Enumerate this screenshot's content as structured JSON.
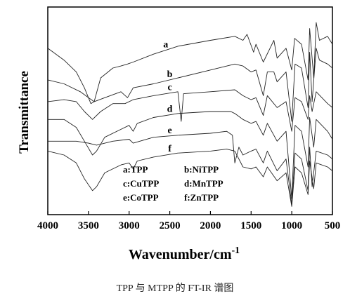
{
  "chart_data": {
    "type": "line",
    "xlabel": "Wavenumber/cm",
    "xlabel_superscript": "-1",
    "ylabel": "Transmittance",
    "xlim": [
      4000,
      500
    ],
    "x_ticks": [
      "4000",
      "3500",
      "3000",
      "2500",
      "2000",
      "1500",
      "1000",
      "500"
    ],
    "y_ticks": "none",
    "legend": [
      "a:TPP",
      "b:NiTPP",
      "c:CuTPP",
      "d:MnTPP",
      "e:CoTPP",
      "f:ZnTPP"
    ],
    "legend_placement": "bottom-center",
    "series": [
      {
        "name": "a",
        "label_at": 2550,
        "points": [
          [
            4000,
            0.82
          ],
          [
            3800,
            0.76
          ],
          [
            3650,
            0.7
          ],
          [
            3550,
            0.62
          ],
          [
            3470,
            0.54
          ],
          [
            3430,
            0.55
          ],
          [
            3350,
            0.67
          ],
          [
            3200,
            0.72
          ],
          [
            3100,
            0.73
          ],
          [
            3020,
            0.74
          ],
          [
            2950,
            0.75
          ],
          [
            2700,
            0.79
          ],
          [
            2400,
            0.83
          ],
          [
            2000,
            0.86
          ],
          [
            1700,
            0.88
          ],
          [
            1600,
            0.86
          ],
          [
            1550,
            0.89
          ],
          [
            1470,
            0.8
          ],
          [
            1440,
            0.84
          ],
          [
            1350,
            0.75
          ],
          [
            1220,
            0.86
          ],
          [
            1180,
            0.77
          ],
          [
            1070,
            0.82
          ],
          [
            1000,
            0.71
          ],
          [
            965,
            0.87
          ],
          [
            880,
            0.84
          ],
          [
            800,
            0.66
          ],
          [
            780,
            0.92
          ],
          [
            730,
            0.67
          ],
          [
            700,
            0.95
          ],
          [
            660,
            0.86
          ],
          [
            560,
            0.88
          ],
          [
            500,
            0.84
          ]
        ]
      },
      {
        "name": "b",
        "label_at": 2500,
        "points": [
          [
            4000,
            0.66
          ],
          [
            3800,
            0.64
          ],
          [
            3600,
            0.6
          ],
          [
            3500,
            0.57
          ],
          [
            3430,
            0.55
          ],
          [
            3300,
            0.57
          ],
          [
            3100,
            0.6
          ],
          [
            3020,
            0.57
          ],
          [
            2950,
            0.62
          ],
          [
            2700,
            0.64
          ],
          [
            2400,
            0.67
          ],
          [
            2000,
            0.71
          ],
          [
            1700,
            0.74
          ],
          [
            1600,
            0.73
          ],
          [
            1500,
            0.7
          ],
          [
            1440,
            0.71
          ],
          [
            1350,
            0.58
          ],
          [
            1300,
            0.7
          ],
          [
            1220,
            0.7
          ],
          [
            1180,
            0.65
          ],
          [
            1070,
            0.7
          ],
          [
            1000,
            0.45
          ],
          [
            960,
            0.74
          ],
          [
            880,
            0.72
          ],
          [
            800,
            0.52
          ],
          [
            780,
            0.8
          ],
          [
            750,
            0.55
          ],
          [
            700,
            0.82
          ],
          [
            660,
            0.76
          ],
          [
            560,
            0.74
          ],
          [
            500,
            0.72
          ]
        ]
      },
      {
        "name": "c",
        "label_at": 2500,
        "points": [
          [
            4000,
            0.55
          ],
          [
            3800,
            0.56
          ],
          [
            3650,
            0.55
          ],
          [
            3550,
            0.5
          ],
          [
            3450,
            0.46
          ],
          [
            3350,
            0.5
          ],
          [
            3200,
            0.54
          ],
          [
            3050,
            0.54
          ],
          [
            2950,
            0.56
          ],
          [
            2700,
            0.58
          ],
          [
            2400,
            0.6
          ],
          [
            2360,
            0.45
          ],
          [
            2330,
            0.59
          ],
          [
            2000,
            0.6
          ],
          [
            1700,
            0.61
          ],
          [
            1600,
            0.58
          ],
          [
            1500,
            0.56
          ],
          [
            1440,
            0.57
          ],
          [
            1350,
            0.48
          ],
          [
            1300,
            0.58
          ],
          [
            1180,
            0.52
          ],
          [
            1070,
            0.55
          ],
          [
            1000,
            0.4
          ],
          [
            960,
            0.57
          ],
          [
            880,
            0.55
          ],
          [
            800,
            0.46
          ],
          [
            780,
            0.58
          ],
          [
            750,
            0.5
          ],
          [
            700,
            0.6
          ],
          [
            560,
            0.54
          ],
          [
            500,
            0.52
          ]
        ]
      },
      {
        "name": "d",
        "label_at": 2500,
        "points": [
          [
            4000,
            0.46
          ],
          [
            3800,
            0.46
          ],
          [
            3650,
            0.42
          ],
          [
            3550,
            0.35
          ],
          [
            3450,
            0.28
          ],
          [
            3400,
            0.3
          ],
          [
            3300,
            0.37
          ],
          [
            3100,
            0.41
          ],
          [
            3000,
            0.43
          ],
          [
            2950,
            0.4
          ],
          [
            2900,
            0.44
          ],
          [
            2700,
            0.47
          ],
          [
            2400,
            0.49
          ],
          [
            2000,
            0.5
          ],
          [
            1750,
            0.5
          ],
          [
            1700,
            0.49
          ],
          [
            1600,
            0.46
          ],
          [
            1500,
            0.44
          ],
          [
            1440,
            0.45
          ],
          [
            1350,
            0.38
          ],
          [
            1300,
            0.44
          ],
          [
            1180,
            0.35
          ],
          [
            1070,
            0.4
          ],
          [
            1000,
            0.06
          ],
          [
            960,
            0.43
          ],
          [
            880,
            0.4
          ],
          [
            800,
            0.22
          ],
          [
            780,
            0.47
          ],
          [
            730,
            0.32
          ],
          [
            700,
            0.46
          ],
          [
            560,
            0.4
          ],
          [
            500,
            0.36
          ]
        ]
      },
      {
        "name": "e",
        "label_at": 2500,
        "points": [
          [
            4000,
            0.35
          ],
          [
            3800,
            0.35
          ],
          [
            3650,
            0.35
          ],
          [
            3500,
            0.34
          ],
          [
            3400,
            0.33
          ],
          [
            3200,
            0.35
          ],
          [
            3000,
            0.36
          ],
          [
            2950,
            0.34
          ],
          [
            2700,
            0.37
          ],
          [
            2400,
            0.38
          ],
          [
            2000,
            0.39
          ],
          [
            1800,
            0.4
          ],
          [
            1730,
            0.38
          ],
          [
            1700,
            0.24
          ],
          [
            1650,
            0.32
          ],
          [
            1600,
            0.28
          ],
          [
            1500,
            0.3
          ],
          [
            1440,
            0.31
          ],
          [
            1350,
            0.24
          ],
          [
            1300,
            0.3
          ],
          [
            1180,
            0.2
          ],
          [
            1070,
            0.26
          ],
          [
            1000,
            0.03
          ],
          [
            960,
            0.29
          ],
          [
            880,
            0.26
          ],
          [
            800,
            0.1
          ],
          [
            780,
            0.32
          ],
          [
            750,
            0.12
          ],
          [
            700,
            0.3
          ],
          [
            560,
            0.28
          ],
          [
            500,
            0.26
          ]
        ]
      },
      {
        "name": "f",
        "label_at": 2500,
        "points": [
          [
            4000,
            0.3
          ],
          [
            3800,
            0.28
          ],
          [
            3650,
            0.24
          ],
          [
            3550,
            0.16
          ],
          [
            3450,
            0.1
          ],
          [
            3400,
            0.12
          ],
          [
            3300,
            0.19
          ],
          [
            3100,
            0.23
          ],
          [
            3000,
            0.24
          ],
          [
            2950,
            0.21
          ],
          [
            2900,
            0.25
          ],
          [
            2700,
            0.27
          ],
          [
            2400,
            0.29
          ],
          [
            2000,
            0.3
          ],
          [
            1800,
            0.31
          ],
          [
            1700,
            0.3
          ],
          [
            1600,
            0.22
          ],
          [
            1500,
            0.21
          ],
          [
            1440,
            0.22
          ],
          [
            1350,
            0.17
          ],
          [
            1300,
            0.22
          ],
          [
            1180,
            0.15
          ],
          [
            1070,
            0.19
          ],
          [
            1000,
            0.02
          ],
          [
            960,
            0.22
          ],
          [
            880,
            0.19
          ],
          [
            800,
            0.08
          ],
          [
            780,
            0.25
          ],
          [
            730,
            0.11
          ],
          [
            700,
            0.24
          ],
          [
            560,
            0.22
          ],
          [
            500,
            0.2
          ]
        ]
      }
    ]
  },
  "caption": "TPP 与 MTPP 的 FT-IR 谱图"
}
